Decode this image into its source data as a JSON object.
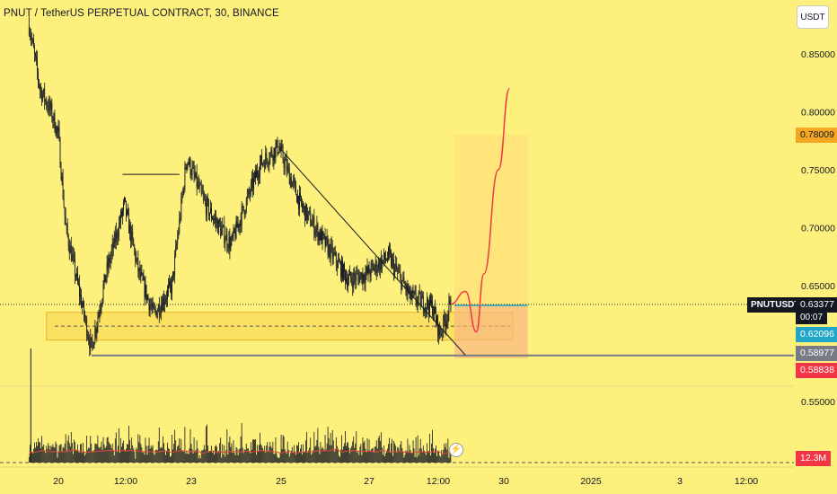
{
  "header": {
    "title": "PNUT / TetherUS PERPETUAL CONTRACT, 30, BINANCE",
    "currency": "USDT"
  },
  "price_scale": {
    "ticks": [
      "0.85000",
      "0.80000",
      "0.75000",
      "0.70000",
      "0.65000",
      "0.55000"
    ],
    "labels": {
      "target": "0.78009",
      "symbol": "PNUTUSDT.P",
      "current": "0.63377",
      "timer": "00:07",
      "ma": "0.62096",
      "support": "0.58977",
      "stop": "0.58838",
      "volume": "12.3M"
    }
  },
  "time_axis": {
    "ticks": [
      "20",
      "12:00",
      "23",
      "25",
      "27",
      "12:00",
      "30",
      "2025",
      "3",
      "12:00"
    ]
  },
  "colors": {
    "background": "#fdf07c",
    "candle": "#131722",
    "projection": "#f23645",
    "target_label": "#f5a623",
    "ma_label": "#22a6c7",
    "support_label": "#787b86",
    "stop_label": "#f23645"
  },
  "chart_data": {
    "type": "candlestick",
    "title": "PNUT / TetherUS PERPETUAL CONTRACT, 30, BINANCE",
    "interval": "30",
    "quote": "USDT",
    "y_range": [
      0.54,
      0.88
    ],
    "anchors": [
      {
        "date": "Nov 19 08:00",
        "price": 0.875
      },
      {
        "date": "Nov 19 14:00",
        "price": 0.82
      },
      {
        "date": "Nov 19 20:00",
        "price": 0.8
      },
      {
        "date": "Nov 20 00:00",
        "price": 0.78
      },
      {
        "date": "Nov 20 04:00",
        "price": 0.7
      },
      {
        "date": "Nov 20 12:00",
        "price": 0.64
      },
      {
        "date": "Nov 20 18:00",
        "price": 0.595
      },
      {
        "date": "Nov 21 02:00",
        "price": 0.66
      },
      {
        "date": "Nov 21 12:00",
        "price": 0.72
      },
      {
        "date": "Nov 21 20:00",
        "price": 0.66
      },
      {
        "date": "Nov 22 04:00",
        "price": 0.625
      },
      {
        "date": "Nov 22 14:00",
        "price": 0.65
      },
      {
        "date": "Nov 22 22:00",
        "price": 0.76
      },
      {
        "date": "Nov 23 08:00",
        "price": 0.72
      },
      {
        "date": "Nov 23 22:00",
        "price": 0.685
      },
      {
        "date": "Nov 24 14:00",
        "price": 0.755
      },
      {
        "date": "Nov 25 00:00",
        "price": 0.77
      },
      {
        "date": "Nov 25 12:00",
        "price": 0.72
      },
      {
        "date": "Nov 26 00:00",
        "price": 0.69
      },
      {
        "date": "Nov 26 14:00",
        "price": 0.655
      },
      {
        "date": "Nov 27 00:00",
        "price": 0.66
      },
      {
        "date": "Nov 27 12:00",
        "price": 0.675
      },
      {
        "date": "Nov 28 00:00",
        "price": 0.64
      },
      {
        "date": "Nov 28 12:00",
        "price": 0.632
      },
      {
        "date": "Nov 28 16:00",
        "price": 0.608
      },
      {
        "date": "Nov 28 22:00",
        "price": 0.634
      }
    ],
    "annotations": {
      "demand_zone": [
        0.603,
        0.627
      ],
      "support_level": 0.58977,
      "stop_level": 0.58838,
      "target_level": 0.78009,
      "current_price": 0.63377,
      "moving_average": 0.62096,
      "trendline": [
        {
          "date": "Nov 25 00:00",
          "price": 0.77
        },
        {
          "date": "Nov 29 06:00",
          "price": 0.59
        }
      ],
      "projection_path": [
        {
          "date": "Nov 28 22:00",
          "price": 0.634
        },
        {
          "date": "Nov 29 06:00",
          "price": 0.645
        },
        {
          "date": "Nov 29 12:00",
          "price": 0.61
        },
        {
          "date": "Nov 29 16:00",
          "price": 0.66
        },
        {
          "date": "Nov 30 00:00",
          "price": 0.75
        },
        {
          "date": "Nov 30 06:00",
          "price": 0.82
        }
      ]
    },
    "volume_last": "12.3M"
  }
}
